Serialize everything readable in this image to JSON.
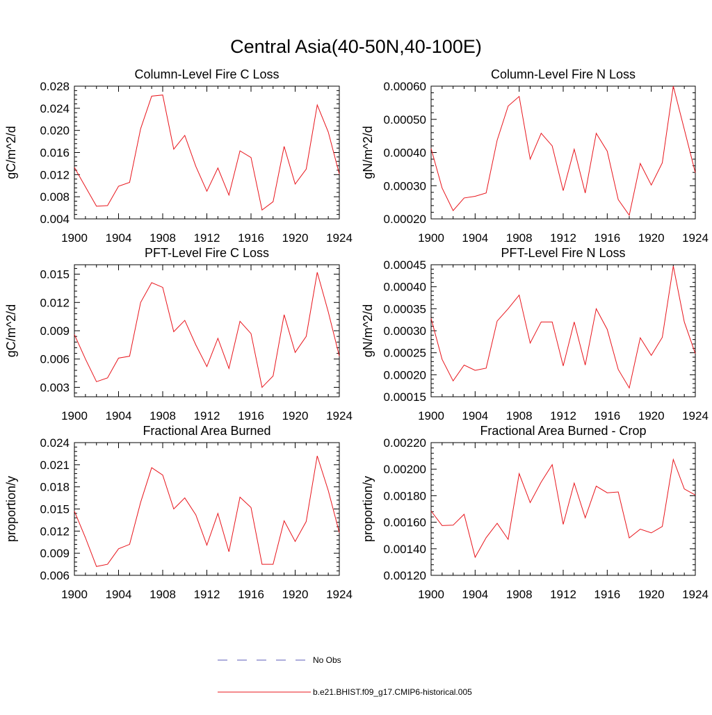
{
  "figure": {
    "title": "Central Asia(40-50N,40-100E)"
  },
  "legend": {
    "items": [
      {
        "label": "No Obs",
        "color": "#5b5bb8",
        "style": "dashed"
      },
      {
        "label": "b.e21.BHIST.f09_g17.CMIP6-historical.005",
        "color": "#e8141b",
        "style": "solid"
      }
    ]
  },
  "chart_data": [
    {
      "type": "line",
      "title": "Column-Level Fire C Loss",
      "ylabel": "gC/m^2/d",
      "xlim": [
        1900,
        1924
      ],
      "ylim": [
        0.004,
        0.028
      ],
      "x_ticks": [
        1900,
        1904,
        1908,
        1912,
        1916,
        1920,
        1924
      ],
      "y_ticks": [
        0.004,
        0.008,
        0.012,
        0.016,
        0.02,
        0.024,
        0.028
      ],
      "y_tick_labels": [
        "0.004",
        "0.008",
        "0.012",
        "0.016",
        "0.020",
        "0.024",
        "0.028"
      ],
      "x": [
        1900,
        1901,
        1902,
        1903,
        1904,
        1905,
        1906,
        1907,
        1908,
        1909,
        1910,
        1911,
        1912,
        1913,
        1914,
        1915,
        1916,
        1917,
        1918,
        1919,
        1920,
        1921,
        1922,
        1923,
        1924
      ],
      "series": [
        {
          "color": "#e8141b",
          "values": [
            0.0133,
            0.0098,
            0.0063,
            0.0064,
            0.0099,
            0.0106,
            0.0203,
            0.0262,
            0.0264,
            0.0166,
            0.0191,
            0.0135,
            0.009,
            0.0132,
            0.0083,
            0.0163,
            0.0151,
            0.0056,
            0.0071,
            0.0171,
            0.0103,
            0.013,
            0.0246,
            0.0197,
            0.0121
          ]
        }
      ]
    },
    {
      "type": "line",
      "title": "Column-Level Fire N Loss",
      "ylabel": "gN/m^2/d",
      "xlim": [
        1900,
        1924
      ],
      "ylim": [
        0.0002,
        0.0006
      ],
      "x_ticks": [
        1900,
        1904,
        1908,
        1912,
        1916,
        1920,
        1924
      ],
      "y_ticks": [
        0.0002,
        0.0003,
        0.0004,
        0.0005,
        0.0006
      ],
      "y_tick_labels": [
        "0.00020",
        "0.00030",
        "0.00040",
        "0.00050",
        "0.00060"
      ],
      "x": [
        1900,
        1901,
        1902,
        1903,
        1904,
        1905,
        1906,
        1907,
        1908,
        1909,
        1910,
        1911,
        1912,
        1913,
        1914,
        1915,
        1916,
        1917,
        1918,
        1919,
        1920,
        1921,
        1922,
        1923,
        1924
      ],
      "series": [
        {
          "color": "#e8141b",
          "values": [
            0.000412,
            0.000293,
            0.000225,
            0.000263,
            0.000268,
            0.000278,
            0.000437,
            0.00054,
            0.000569,
            0.00038,
            0.000458,
            0.00042,
            0.000285,
            0.00041,
            0.000278,
            0.000458,
            0.000404,
            0.000258,
            0.000211,
            0.000367,
            0.000302,
            0.000369,
            0.0006,
            0.00047,
            0.000339
          ]
        }
      ]
    },
    {
      "type": "line",
      "title": "PFT-Level Fire C Loss",
      "ylabel": "gC/m^2/d",
      "xlim": [
        1900,
        1924
      ],
      "ylim": [
        0.002,
        0.016
      ],
      "x_ticks": [
        1900,
        1904,
        1908,
        1912,
        1916,
        1920,
        1924
      ],
      "y_ticks": [
        0.003,
        0.006,
        0.009,
        0.012,
        0.015
      ],
      "y_tick_labels": [
        "0.003",
        "0.006",
        "0.009",
        "0.012",
        "0.015"
      ],
      "x": [
        1900,
        1901,
        1902,
        1903,
        1904,
        1905,
        1906,
        1907,
        1908,
        1909,
        1910,
        1911,
        1912,
        1913,
        1914,
        1915,
        1916,
        1917,
        1918,
        1919,
        1920,
        1921,
        1922,
        1923,
        1924
      ],
      "series": [
        {
          "color": "#e8141b",
          "values": [
            0.0086,
            0.006,
            0.0036,
            0.004,
            0.0061,
            0.0063,
            0.012,
            0.0141,
            0.0136,
            0.0089,
            0.0101,
            0.0075,
            0.0052,
            0.0082,
            0.005,
            0.01,
            0.0087,
            0.003,
            0.0042,
            0.0107,
            0.0067,
            0.0084,
            0.0152,
            0.011,
            0.0063
          ]
        }
      ]
    },
    {
      "type": "line",
      "title": "PFT-Level Fire N Loss",
      "ylabel": "gN/m^2/d",
      "xlim": [
        1900,
        1924
      ],
      "ylim": [
        0.00015,
        0.00045
      ],
      "x_ticks": [
        1900,
        1904,
        1908,
        1912,
        1916,
        1920,
        1924
      ],
      "y_ticks": [
        0.00015,
        0.0002,
        0.00025,
        0.0003,
        0.00035,
        0.0004,
        0.00045
      ],
      "y_tick_labels": [
        "0.00015",
        "0.00020",
        "0.00025",
        "0.00030",
        "0.00035",
        "0.00040",
        "0.00045"
      ],
      "x": [
        1900,
        1901,
        1902,
        1903,
        1904,
        1905,
        1906,
        1907,
        1908,
        1909,
        1910,
        1911,
        1912,
        1913,
        1914,
        1915,
        1916,
        1917,
        1918,
        1919,
        1920,
        1921,
        1922,
        1923,
        1924
      ],
      "series": [
        {
          "color": "#e8141b",
          "values": [
            0.000328,
            0.000235,
            0.000186,
            0.000222,
            0.00021,
            0.000215,
            0.000322,
            0.00035,
            0.000381,
            0.000272,
            0.00032,
            0.00032,
            0.00022,
            0.00032,
            0.000222,
            0.00035,
            0.000303,
            0.000212,
            0.00017,
            0.000284,
            0.000244,
            0.000285,
            0.000447,
            0.00032,
            0.000248
          ]
        }
      ]
    },
    {
      "type": "line",
      "title": "Fractional Area Burned",
      "ylabel": "proportion/y",
      "xlim": [
        1900,
        1924
      ],
      "ylim": [
        0.006,
        0.024
      ],
      "x_ticks": [
        1900,
        1904,
        1908,
        1912,
        1916,
        1920,
        1924
      ],
      "y_ticks": [
        0.006,
        0.009,
        0.012,
        0.015,
        0.018,
        0.021,
        0.024
      ],
      "y_tick_labels": [
        "0.006",
        "0.009",
        "0.012",
        "0.015",
        "0.018",
        "0.021",
        "0.024"
      ],
      "x": [
        1900,
        1901,
        1902,
        1903,
        1904,
        1905,
        1906,
        1907,
        1908,
        1909,
        1910,
        1911,
        1912,
        1913,
        1914,
        1915,
        1916,
        1917,
        1918,
        1919,
        1920,
        1921,
        1922,
        1923,
        1924
      ],
      "series": [
        {
          "color": "#e8141b",
          "values": [
            0.0147,
            0.0111,
            0.0072,
            0.0075,
            0.0096,
            0.0102,
            0.0159,
            0.0206,
            0.0196,
            0.015,
            0.0165,
            0.0142,
            0.0101,
            0.0144,
            0.0092,
            0.0166,
            0.0152,
            0.0075,
            0.0075,
            0.0134,
            0.0106,
            0.0133,
            0.0222,
            0.0175,
            0.0118
          ]
        }
      ]
    },
    {
      "type": "line",
      "title": "Fractional Area Burned - Crop",
      "ylabel": "proportion/y",
      "xlim": [
        1900,
        1924
      ],
      "ylim": [
        0.0012,
        0.0022
      ],
      "x_ticks": [
        1900,
        1904,
        1908,
        1912,
        1916,
        1920,
        1924
      ],
      "y_ticks": [
        0.0012,
        0.0014,
        0.0016,
        0.0018,
        0.002,
        0.0022
      ],
      "y_tick_labels": [
        "0.00120",
        "0.00140",
        "0.00160",
        "0.00180",
        "0.00200",
        "0.00220"
      ],
      "x": [
        1900,
        1901,
        1902,
        1903,
        1904,
        1905,
        1906,
        1907,
        1908,
        1909,
        1910,
        1911,
        1912,
        1913,
        1914,
        1915,
        1916,
        1917,
        1918,
        1919,
        1920,
        1921,
        1922,
        1923,
        1924
      ],
      "series": [
        {
          "color": "#e8141b",
          "values": [
            0.001685,
            0.001575,
            0.001578,
            0.00166,
            0.001336,
            0.001484,
            0.001592,
            0.001471,
            0.001966,
            0.001748,
            0.001903,
            0.002034,
            0.001584,
            0.001895,
            0.001634,
            0.001872,
            0.001822,
            0.001828,
            0.001482,
            0.001548,
            0.00152,
            0.001568,
            0.002073,
            0.001851,
            0.001805
          ]
        }
      ]
    }
  ]
}
